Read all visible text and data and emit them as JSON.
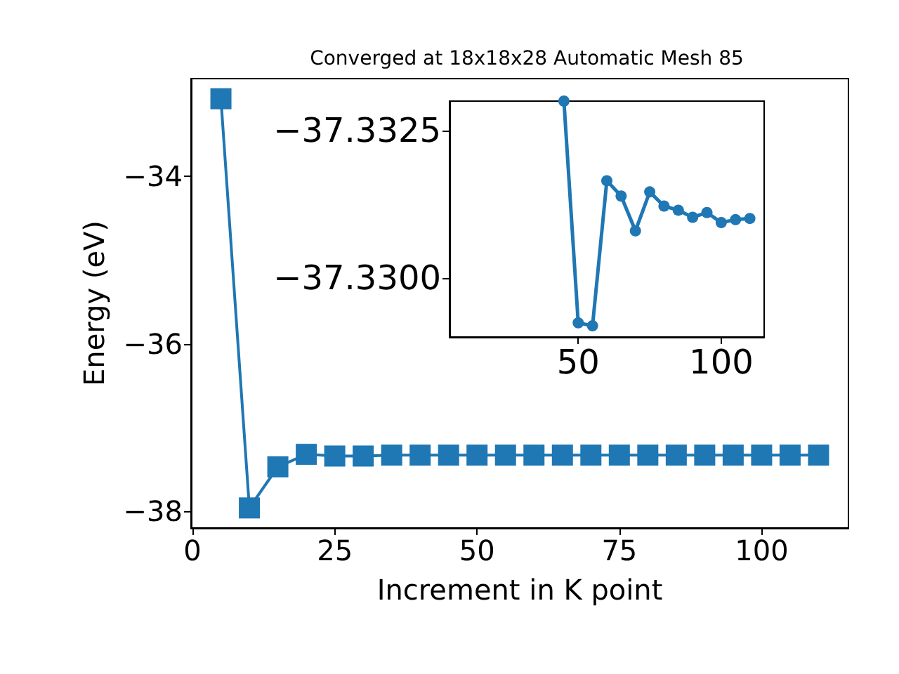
{
  "chart_data": [
    {
      "type": "line",
      "title": "Converged at 18x18x28 Automatic Mesh 85",
      "xlabel": "Increment in K point",
      "ylabel": "Energy (eV)",
      "x": [
        5,
        10,
        15,
        20,
        25,
        30,
        35,
        40,
        45,
        50,
        55,
        60,
        65,
        70,
        75,
        80,
        85,
        90,
        95,
        100,
        105,
        110
      ],
      "values": [
        -33.07,
        -37.96,
        -37.47,
        -37.32,
        -37.34,
        -37.34,
        -37.33,
        -37.33,
        -37.33,
        -37.33,
        -37.33,
        -37.33,
        -37.33,
        -37.33,
        -37.33,
        -37.33,
        -37.33,
        -37.33,
        -37.33,
        -37.33,
        -37.33,
        -37.33
      ],
      "color": "#1f77b4",
      "xlim": [
        -0.25,
        115.25
      ],
      "xticks": [
        0,
        25,
        50,
        75,
        100
      ],
      "ylim": [
        -38.2,
        -32.83
      ],
      "yticks": [
        -38,
        -36,
        -34
      ],
      "marker": "square",
      "grid": false
    },
    {
      "type": "line",
      "x": [
        45,
        50,
        55,
        60,
        65,
        70,
        75,
        80,
        85,
        90,
        95,
        100,
        105,
        110
      ],
      "values": [
        -37.333,
        -37.32924,
        -37.32919,
        -37.33165,
        -37.33139,
        -37.3308,
        -37.33146,
        -37.33122,
        -37.33115,
        -37.33103,
        -37.33111,
        -37.33094,
        -37.33099,
        -37.33101
      ],
      "color": "#1f77b4",
      "xlim": [
        5,
        115
      ],
      "xticks": [
        50,
        100
      ],
      "ylim": [
        -37.329,
        -37.333
      ],
      "yticks": [
        {
          "value": -37.33,
          "label": "−37.3300"
        },
        {
          "value": -37.3325,
          "label": "−37.3325"
        }
      ],
      "marker": "circle",
      "grid": false
    }
  ]
}
